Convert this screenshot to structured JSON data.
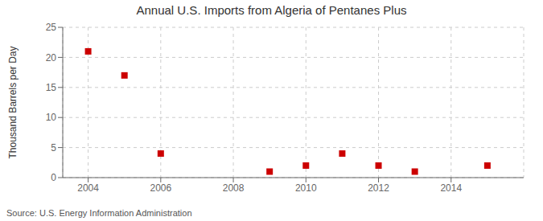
{
  "chart_data": {
    "type": "scatter",
    "title": "Annual U.S. Imports from Algeria of Pentanes Plus",
    "y_label": "Thousand Barrels per Day",
    "annotations": [
      "Source: U.S. Energy Information Administration"
    ],
    "x": [
      2004,
      2005,
      2006,
      2009,
      2010,
      2011,
      2012,
      2013,
      2015
    ],
    "values": [
      21,
      17,
      4,
      1,
      2,
      4,
      2,
      1,
      2
    ],
    "color": "#cc0000",
    "marker": "square",
    "xlim": [
      2003.3,
      2016.0
    ],
    "ylim": [
      0,
      25
    ],
    "xticks": [
      2004,
      2006,
      2008,
      2010,
      2012,
      2014
    ],
    "yticks": [
      0,
      5,
      10,
      15,
      20,
      25
    ],
    "grid": true
  }
}
